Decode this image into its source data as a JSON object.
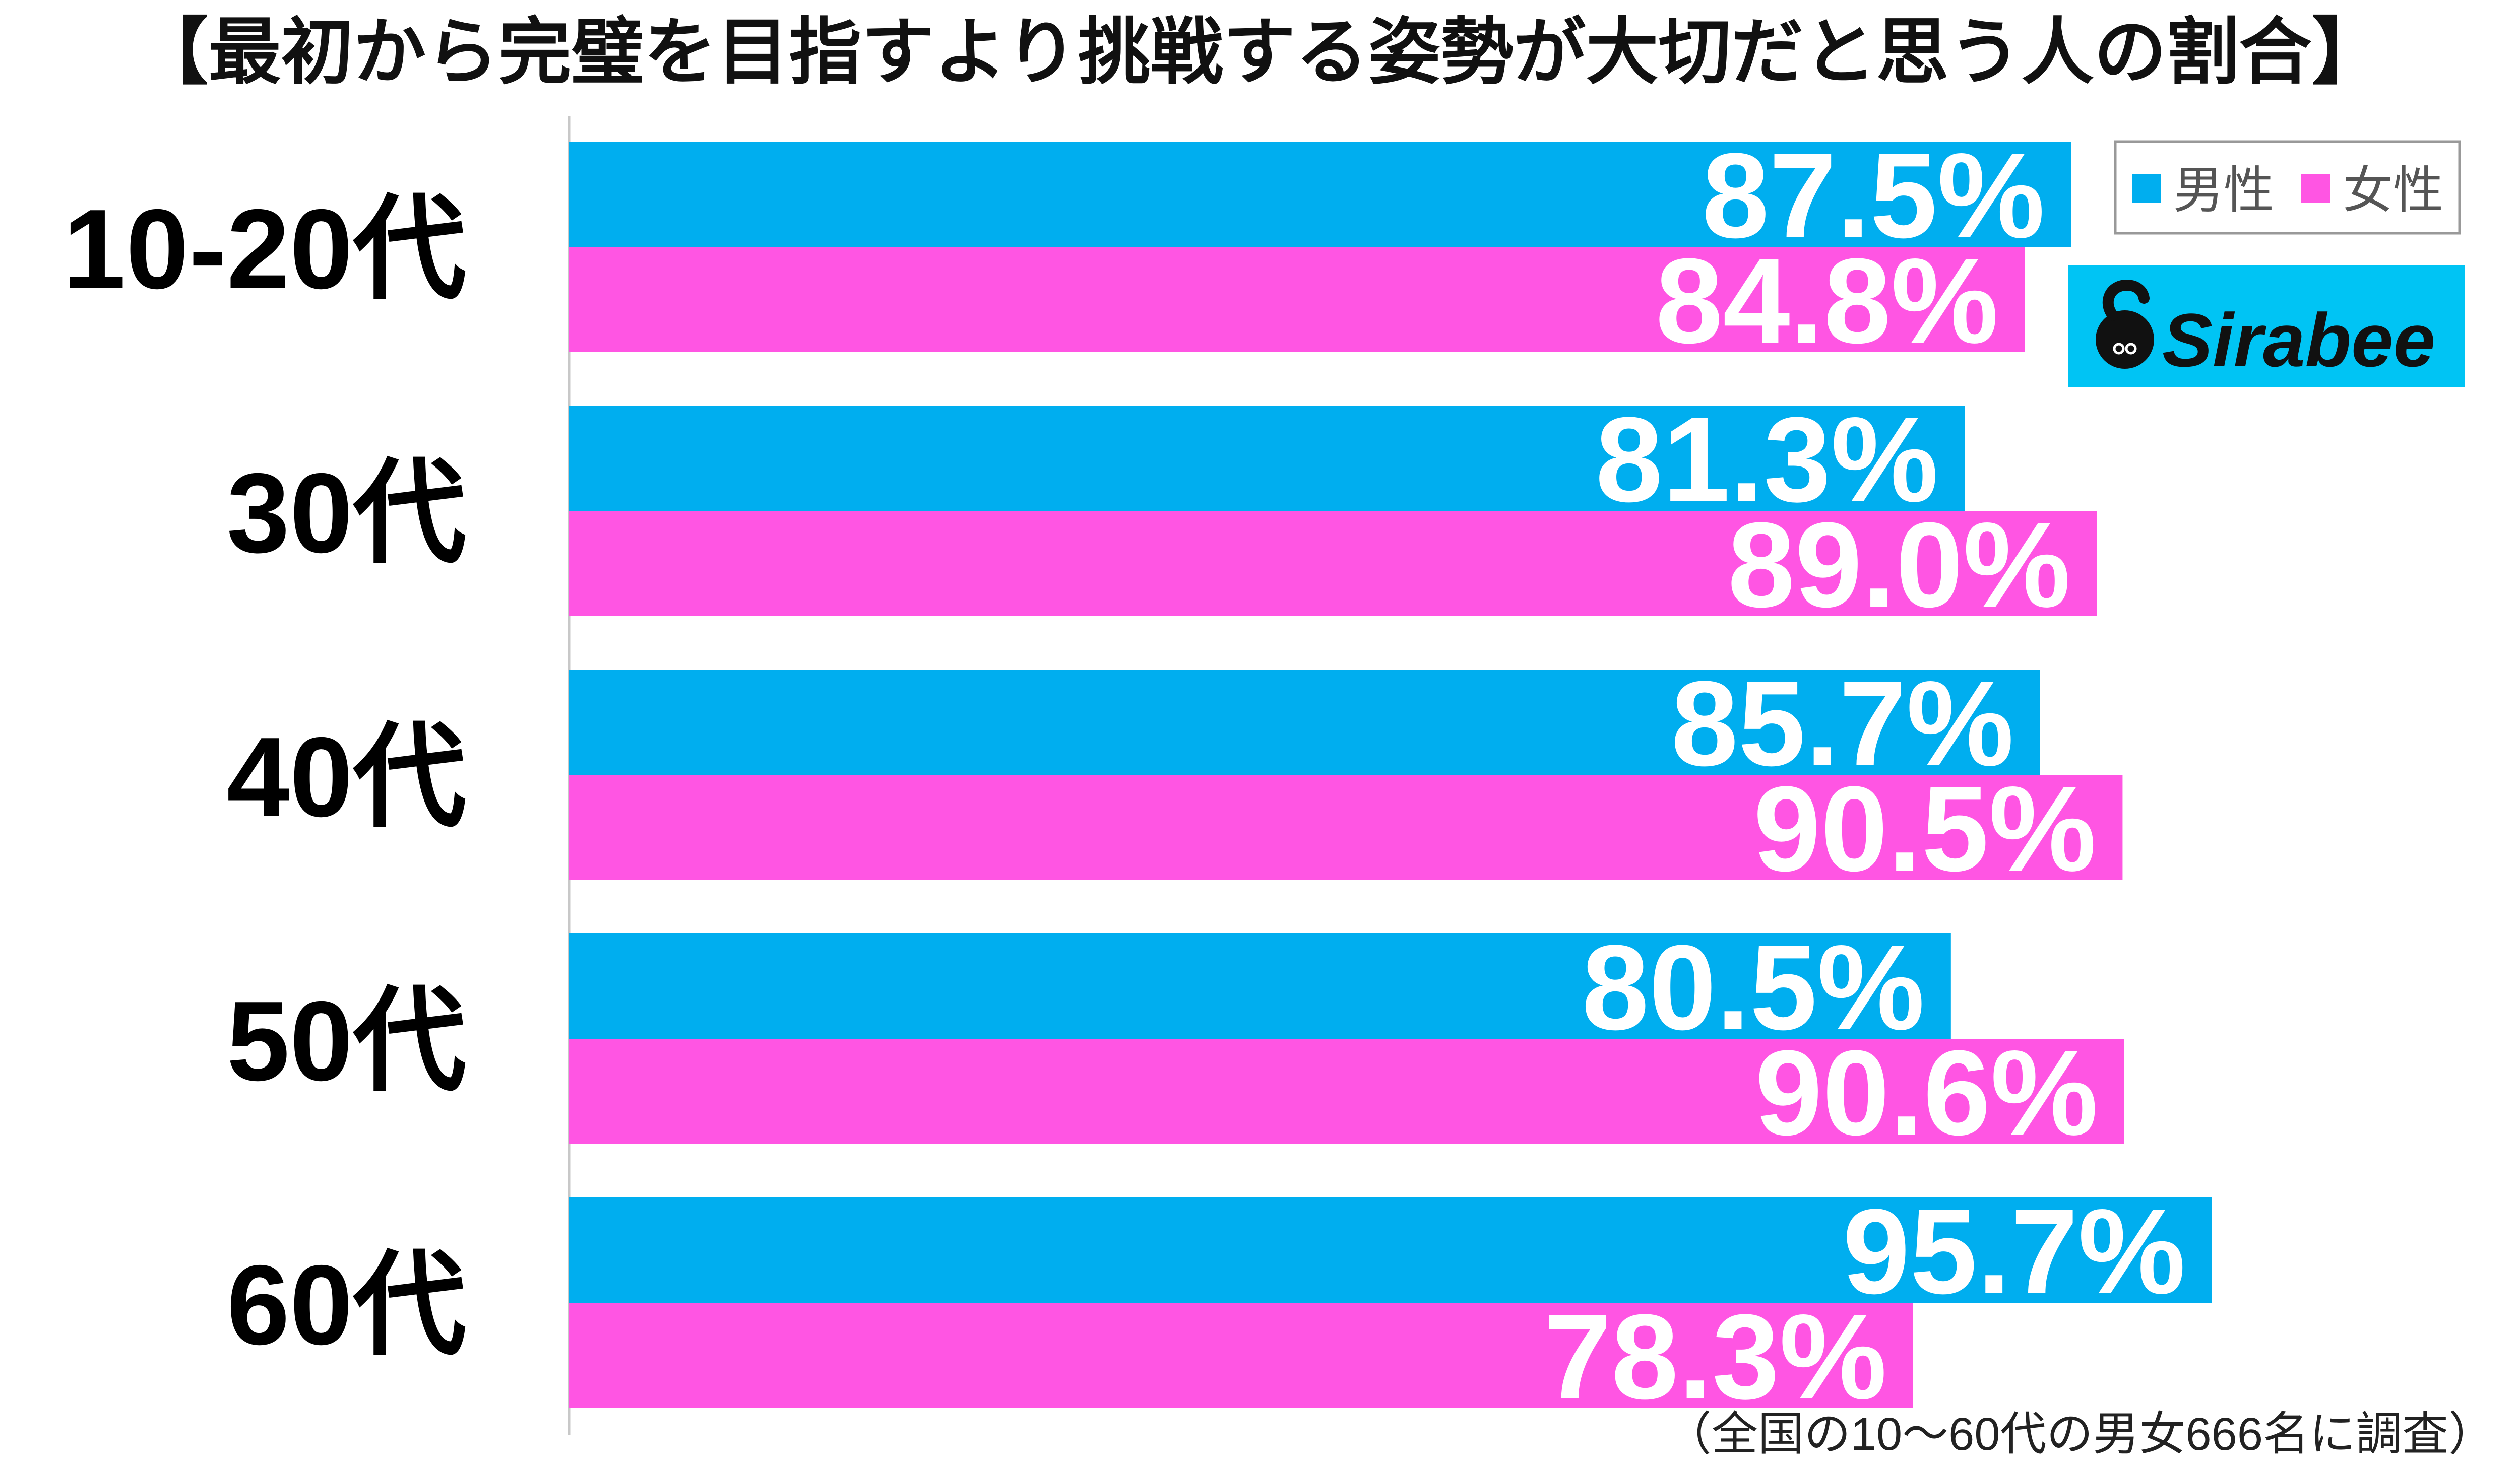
{
  "chart_data": {
    "type": "bar",
    "orientation": "horizontal",
    "title": "【最初から完璧を目指すより挑戦する姿勢が大切だと思う人の割合】",
    "categories": [
      "10-20代",
      "30代",
      "40代",
      "50代",
      "60代"
    ],
    "series": [
      {
        "name": "男性",
        "color": "#00AEEF",
        "values": [
          87.5,
          81.3,
          85.7,
          80.5,
          95.7
        ],
        "labels": [
          "87.5%",
          "81.3%",
          "85.7%",
          "80.5%",
          "95.7%"
        ]
      },
      {
        "name": "女性",
        "color": "#FF55E3",
        "values": [
          84.8,
          89.0,
          90.5,
          90.6,
          78.3
        ],
        "labels": [
          "84.8%",
          "89.0%",
          "90.5%",
          "90.6%",
          "78.3%"
        ]
      }
    ],
    "xlim": [
      0,
      100
    ],
    "grid": false,
    "legend": "top-right",
    "note": "（全国の10〜60代の男女666名に調査）"
  },
  "logo": {
    "text": "Sirabee",
    "background": "#00C4F4"
  }
}
